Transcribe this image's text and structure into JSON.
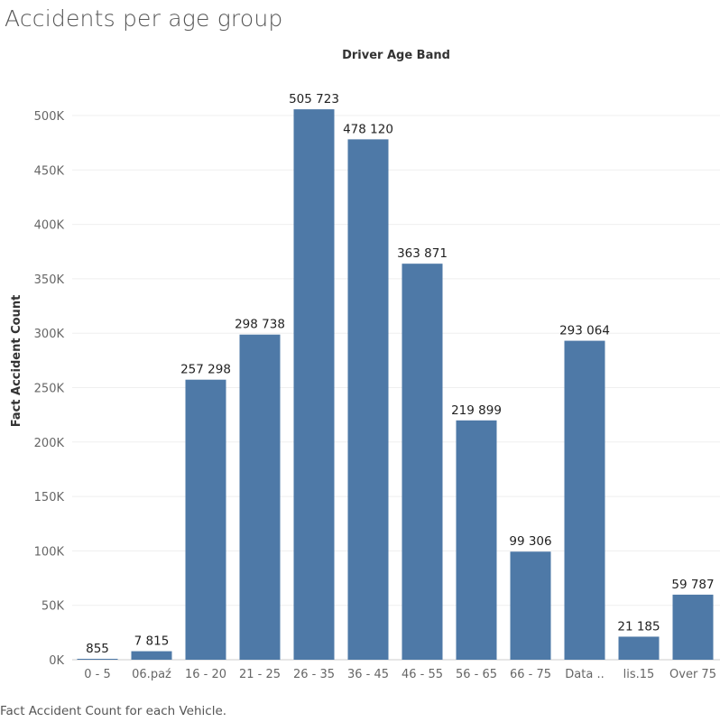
{
  "title": "Accidents per age group",
  "caption": "Fact Accident Count for each Vehicle.",
  "chart_data": {
    "type": "bar",
    "title": "",
    "xlabel": "Driver Age Band",
    "ylabel": "Fact Accident Count",
    "categories": [
      "0 - 5",
      "06.paź",
      "16 - 20",
      "21 - 25",
      "26 - 35",
      "36 - 45",
      "46 - 55",
      "56 - 65",
      "66 - 75",
      "Data ..",
      "lis.15",
      "Over 75"
    ],
    "values": [
      855,
      7815,
      257298,
      298738,
      505723,
      478120,
      363871,
      219899,
      99306,
      293064,
      21185,
      59787
    ],
    "data_labels": [
      "855",
      "7 815",
      "257 298",
      "298 738",
      "505 723",
      "478 120",
      "363 871",
      "219 899",
      "99 306",
      "293 064",
      "21 185",
      "59 787"
    ],
    "ylim": [
      0,
      500000
    ],
    "yticks": [
      0,
      50000,
      100000,
      150000,
      200000,
      250000,
      300000,
      350000,
      400000,
      450000,
      500000
    ],
    "ytick_labels": [
      "0K",
      "50K",
      "100K",
      "150K",
      "200K",
      "250K",
      "300K",
      "350K",
      "400K",
      "450K",
      "500K"
    ],
    "bar_color": "#4e79a7",
    "grid": true,
    "legend": "none"
  }
}
